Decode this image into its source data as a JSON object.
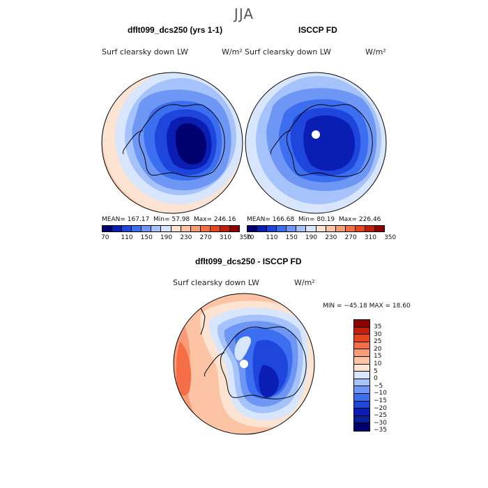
{
  "season": "JJA",
  "left_panel": {
    "title": "dflt099_dcs250 (yrs 1-1)",
    "variable": "Surf clearsky down LW",
    "units": "W/m²",
    "mean_label": "MEAN=",
    "mean": "167.17",
    "min_label": "Min=",
    "min": "57.98",
    "max_label": "Max=",
    "max": "246.16"
  },
  "right_panel": {
    "title": "ISCCP FD",
    "variable": "Surf clearsky down LW",
    "units": "W/m²",
    "mean_label": "MEAN=",
    "mean": "166.68",
    "min_label": "Min=",
    "min": "80.19",
    "max_label": "Max=",
    "max": "226.46"
  },
  "diff_panel": {
    "title": "dflt099_dcs250 - ISCCP FD",
    "variable": "Surf clearsky down LW",
    "units": "W/m²",
    "minmax": "MIN = −45.18  MAX =  18.60"
  },
  "colorbar_top": {
    "colors": [
      "#00006e",
      "#0a1eb4",
      "#1e46dc",
      "#3c6ef0",
      "#6e96f5",
      "#a5c3fa",
      "#d7e6fc",
      "#fde4d2",
      "#fcc3a5",
      "#fa9b78",
      "#f56e46",
      "#e6461e",
      "#c31e0a",
      "#8c0000"
    ],
    "labels": [
      "70",
      "110",
      "150",
      "190",
      "230",
      "270",
      "310",
      "350"
    ]
  },
  "colorbar_diff": {
    "colors": [
      "#8c0000",
      "#c31e0a",
      "#e6461e",
      "#f56e46",
      "#fa9b78",
      "#fcc3a5",
      "#fde4d2",
      "#d7e6fc",
      "#a5c3fa",
      "#6e96f5",
      "#3c6ef0",
      "#1e46dc",
      "#0a1eb4",
      "#0a1e96",
      "#00006e"
    ],
    "labels": [
      "35",
      "30",
      "25",
      "20",
      "15",
      "10",
      "5",
      "0",
      "−5",
      "−10",
      "−15",
      "−20",
      "−25",
      "−30",
      "−35"
    ]
  }
}
